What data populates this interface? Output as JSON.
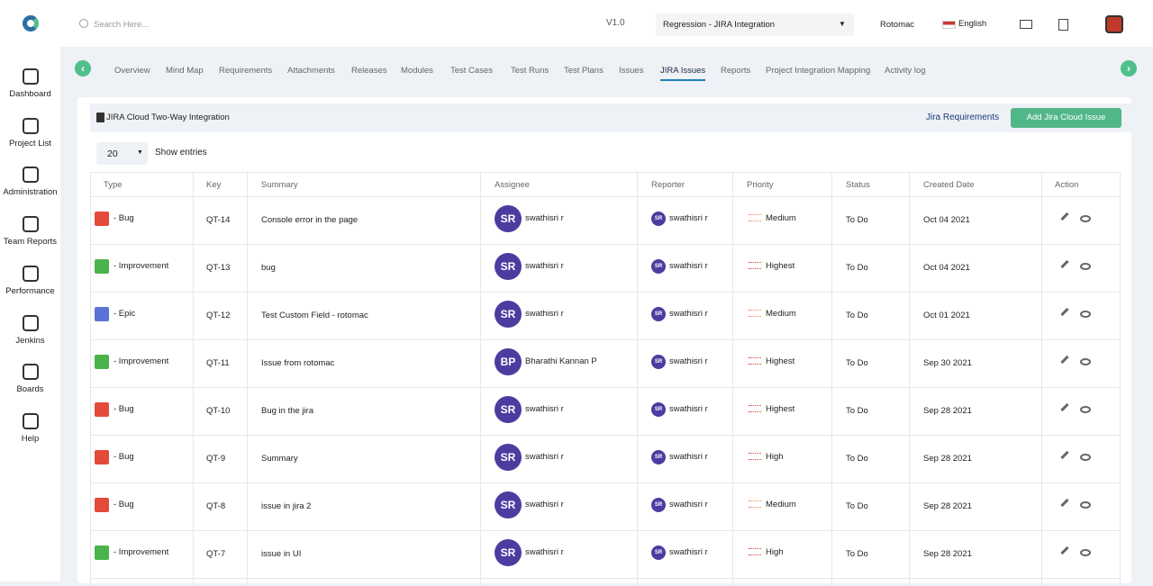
{
  "header": {
    "search_placeholder": "Search Here...",
    "version": "V1.0",
    "project": "Regression - JIRA Integration",
    "org": "Rotomac",
    "language": "English"
  },
  "sidebar": [
    "Dashboard",
    "Project List",
    "Administration",
    "Team Reports",
    "Performance",
    "Jenkins",
    "Boards",
    "Help"
  ],
  "tabs": [
    "Overview",
    "Mind Map",
    "Requirements",
    "Attachments",
    "Releases",
    "Modules",
    "Test Cases",
    "Test Runs",
    "Test Plans",
    "Issues",
    "JIRA Issues",
    "Reports",
    "Project Integration Mapping",
    "Activity log"
  ],
  "active_tab": 10,
  "panel": {
    "title": "JIRA Cloud Two-Way Integration",
    "link": "Jira Requirements",
    "button": "Add Jira Cloud Issue",
    "page_size": "20",
    "page_size_label": "Show entries"
  },
  "table": {
    "columns": [
      "Type",
      "Key",
      "Summary",
      "Assignee",
      "Reporter",
      "Priority",
      "Status",
      "Created Date",
      "Action"
    ],
    "rows": [
      {
        "type": "- Bug",
        "type_color": "#e5493a",
        "key": "QT-14",
        "summary": "Console error in the page",
        "assignee_initials": "SR",
        "assignee": "swathisri r",
        "reporter_initials": "SR",
        "reporter": "swathisri r",
        "priority": "Medium",
        "priority_color": "#e9834f",
        "status": "To Do",
        "created": "Oct 04 2021"
      },
      {
        "type": "- Improvement",
        "type_color": "#4bb34b",
        "key": "QT-13",
        "summary": "bug",
        "assignee_initials": "SR",
        "assignee": "swathisri r",
        "reporter_initials": "SR",
        "reporter": "swathisri r",
        "priority": "Highest",
        "priority_color": "#d63c2f",
        "status": "To Do",
        "created": "Oct 04 2021"
      },
      {
        "type": "- Epic",
        "type_color": "#5b72d6",
        "key": "QT-12",
        "summary": "Test Custom Field - rotomac",
        "assignee_initials": "SR",
        "assignee": "swathisri r",
        "reporter_initials": "SR",
        "reporter": "swathisri r",
        "priority": "Medium",
        "priority_color": "#e9834f",
        "status": "To Do",
        "created": "Oct 01 2021"
      },
      {
        "type": "- Improvement",
        "type_color": "#4bb34b",
        "key": "QT-11",
        "summary": "Issue from rotomac",
        "assignee_initials": "BP",
        "assignee": "Bharathi Kannan P",
        "reporter_initials": "SR",
        "reporter": "swathisri r",
        "priority": "Highest",
        "priority_color": "#d63c2f",
        "status": "To Do",
        "created": "Sep 30 2021"
      },
      {
        "type": "- Bug",
        "type_color": "#e5493a",
        "key": "QT-10",
        "summary": "Bug in the jira",
        "assignee_initials": "SR",
        "assignee": "swathisri r",
        "reporter_initials": "SR",
        "reporter": "swathisri r",
        "priority": "Highest",
        "priority_color": "#d63c2f",
        "status": "To Do",
        "created": "Sep 28 2021"
      },
      {
        "type": "- Bug",
        "type_color": "#e5493a",
        "key": "QT-9",
        "summary": "Summary",
        "assignee_initials": "SR",
        "assignee": "swathisri r",
        "reporter_initials": "SR",
        "reporter": "swathisri r",
        "priority": "High",
        "priority_color": "#d63c2f",
        "status": "To Do",
        "created": "Sep 28 2021"
      },
      {
        "type": "- Bug",
        "type_color": "#e5493a",
        "key": "QT-8",
        "summary": "issue in jira 2",
        "assignee_initials": "SR",
        "assignee": "swathisri r",
        "reporter_initials": "SR",
        "reporter": "swathisri r",
        "priority": "Medium",
        "priority_color": "#e9834f",
        "status": "To Do",
        "created": "Sep 28 2021"
      },
      {
        "type": "- Improvement",
        "type_color": "#4bb34b",
        "key": "QT-7",
        "summary": "issue in UI",
        "assignee_initials": "SR",
        "assignee": "swathisri r",
        "reporter_initials": "SR",
        "reporter": "swathisri r",
        "priority": "High",
        "priority_color": "#d63c2f",
        "status": "To Do",
        "created": "Sep 28 2021"
      }
    ]
  }
}
